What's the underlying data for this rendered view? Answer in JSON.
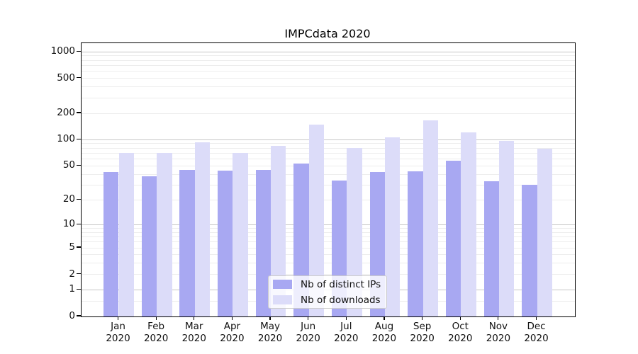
{
  "chart_data": {
    "type": "bar",
    "title": "IMPCdata 2020",
    "categories": [
      "Jan 2020",
      "Feb 2020",
      "Mar 2020",
      "Apr 2020",
      "May 2020",
      "Jun 2020",
      "Jul 2020",
      "Aug 2020",
      "Sep 2020",
      "Oct 2020",
      "Nov 2020",
      "Dec 2020"
    ],
    "series": [
      {
        "name": "Nb of distinct IPs",
        "color": "#a8a8f2",
        "values": [
          42,
          38,
          45,
          44,
          45,
          53,
          34,
          42,
          43,
          57,
          33,
          30
        ]
      },
      {
        "name": "Nb of downloads",
        "color": "#dcdcf9",
        "values": [
          71,
          70,
          93,
          71,
          85,
          150,
          81,
          107,
          166,
          122,
          96,
          79
        ]
      }
    ],
    "yscale": "log1p",
    "ylim": [
      0,
      1250
    ],
    "yticks": [
      {
        "label": "1000",
        "value": 1000
      },
      {
        "label": "500",
        "value": 500
      },
      {
        "label": "200",
        "value": 200
      },
      {
        "label": "100",
        "value": 100
      },
      {
        "label": "50",
        "value": 50
      },
      {
        "label": "20",
        "value": 20
      },
      {
        "label": "10",
        "value": 10
      },
      {
        "label": "5",
        "value": 5
      },
      {
        "label": "2",
        "value": 2
      },
      {
        "label": "1",
        "value": 1
      },
      {
        "label": "0",
        "value": 0
      }
    ],
    "grid": "horizontal-major-and-minor",
    "legend_position": "inside-lower-center"
  }
}
